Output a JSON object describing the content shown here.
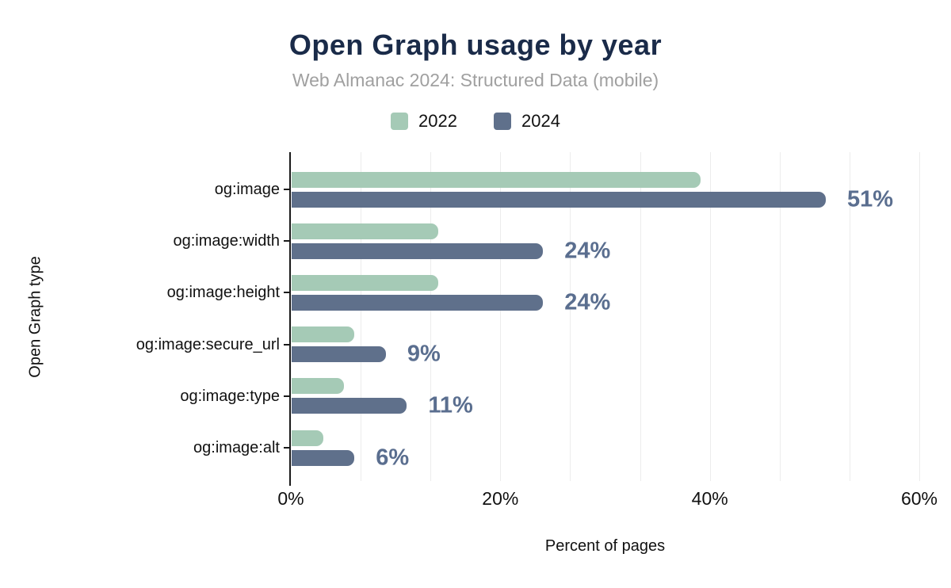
{
  "title": "Open Graph usage by year",
  "subtitle": "Web Almanac 2024: Structured Data (mobile)",
  "colors": {
    "title": "#1a2b49",
    "subtitle": "#a0a0a0",
    "series_2022": "#a5cab6",
    "series_2024": "#5f708b",
    "data_label": "#5a6e8f",
    "gridline": "#ececec",
    "axis": "#1a1a1a"
  },
  "chart_data": {
    "type": "bar",
    "orientation": "horizontal",
    "title": "Open Graph usage by year",
    "subtitle": "Web Almanac 2024: Structured Data (mobile)",
    "categories": [
      "og:image",
      "og:image:width",
      "og:image:height",
      "og:image:secure_url",
      "og:image:type",
      "og:image:alt"
    ],
    "series": [
      {
        "name": "2022",
        "color": "#a5cab6",
        "values": [
          39,
          14,
          14,
          6,
          5,
          3
        ]
      },
      {
        "name": "2024",
        "color": "#5f708b",
        "values": [
          51,
          24,
          24,
          9,
          11,
          6
        ],
        "value_labels": [
          "51%",
          "24%",
          "24%",
          "9%",
          "11%",
          "6%"
        ]
      }
    ],
    "xlabel": "Percent of pages",
    "ylabel": "Open Graph type",
    "xlim": [
      0,
      60
    ],
    "xticks": [
      "0%",
      "20%",
      "40%",
      "60%"
    ],
    "grid": "vertical minor gridlines every 6.67%, light gray",
    "legend_position": "top center",
    "data_labels_on": "2024 series only, right of bar, bold blue-gray"
  }
}
